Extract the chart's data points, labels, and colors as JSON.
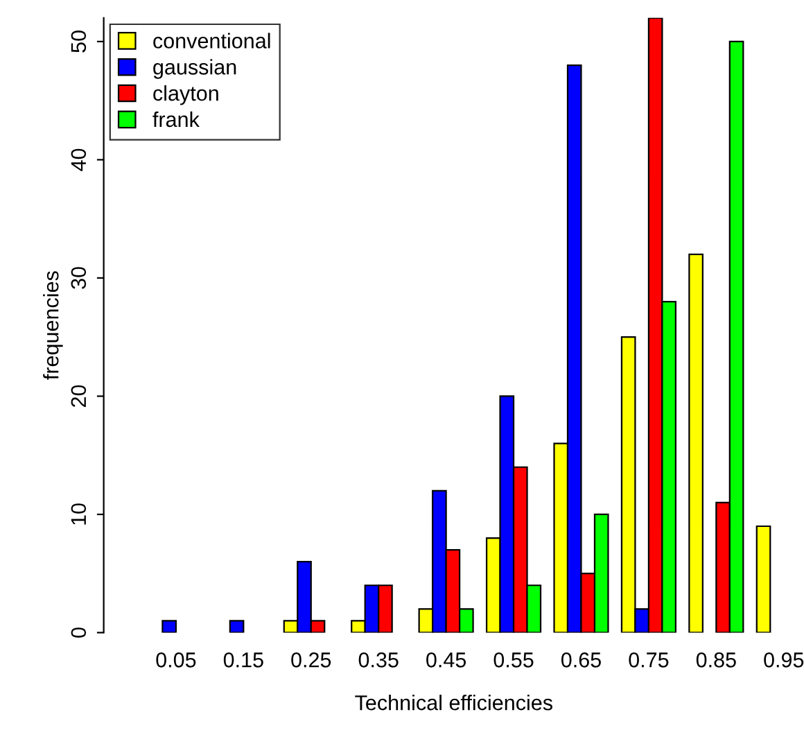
{
  "chart_data": {
    "type": "bar",
    "xlabel": "Technical efficiencies",
    "ylabel": "frequencies",
    "categories": [
      "0.05",
      "0.15",
      "0.25",
      "0.35",
      "0.45",
      "0.55",
      "0.65",
      "0.75",
      "0.85",
      "0.95"
    ],
    "series": [
      {
        "name": "conventional",
        "color": "#ffff00",
        "values": [
          0,
          0,
          1,
          1,
          2,
          8,
          16,
          25,
          32,
          9
        ]
      },
      {
        "name": "gaussian",
        "color": "#0000ff",
        "values": [
          1,
          1,
          6,
          4,
          12,
          20,
          48,
          2,
          0,
          0
        ]
      },
      {
        "name": "clayton",
        "color": "#ff0000",
        "values": [
          0,
          0,
          1,
          4,
          7,
          14,
          5,
          52,
          11,
          0
        ]
      },
      {
        "name": "frank",
        "color": "#00ff00",
        "values": [
          0,
          0,
          0,
          0,
          2,
          4,
          10,
          28,
          50,
          0
        ]
      }
    ],
    "ylim": [
      0,
      52
    ],
    "yticks": [
      0,
      10,
      20,
      30,
      40,
      50
    ],
    "grid": false,
    "legend": "top left"
  }
}
